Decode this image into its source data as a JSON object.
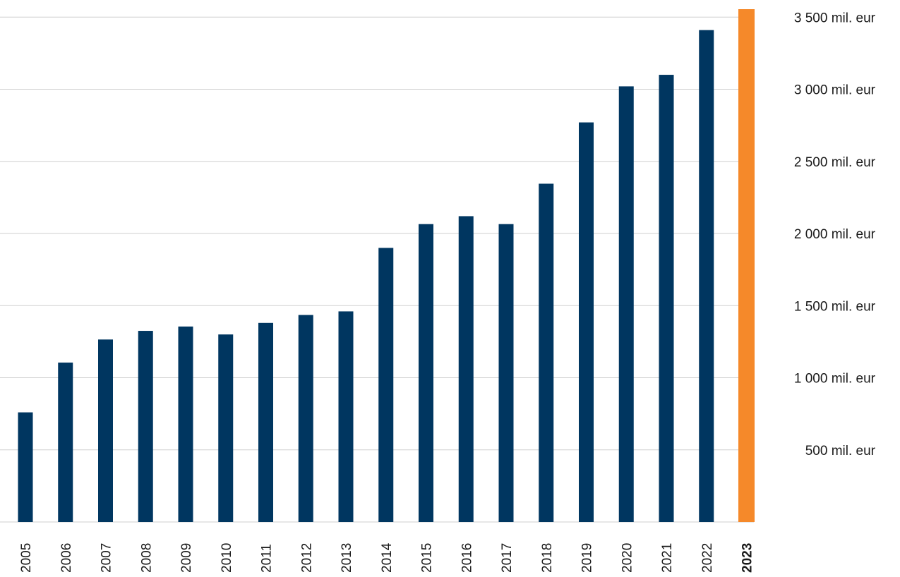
{
  "chart_data": {
    "type": "bar",
    "title": "",
    "xlabel": "",
    "ylabel": "",
    "categories": [
      "2005",
      "2006",
      "2007",
      "2008",
      "2009",
      "2010",
      "2011",
      "2012",
      "2013",
      "2014",
      "2015",
      "2016",
      "2017",
      "2018",
      "2019",
      "2020",
      "2021",
      "2022",
      "2023"
    ],
    "values": [
      760,
      1105,
      1265,
      1325,
      1355,
      1300,
      1380,
      1435,
      1460,
      1900,
      2065,
      2120,
      2065,
      2345,
      2770,
      3020,
      3100,
      3410,
      3540
    ],
    "highlight_category": "2023",
    "ylim": [
      0,
      3500
    ],
    "y_ticks": [
      {
        "value": 500,
        "label": "500 mil. eur"
      },
      {
        "value": 1000,
        "label": "1 000 mil. eur"
      },
      {
        "value": 1500,
        "label": "1 500 mil. eur"
      },
      {
        "value": 2000,
        "label": "2 000 mil. eur"
      },
      {
        "value": 2500,
        "label": "2 500 mil. eur"
      },
      {
        "value": 3000,
        "label": "3 000 mil. eur"
      },
      {
        "value": 3500,
        "label": "3 500 mil. eur"
      }
    ],
    "y_axis_position": "right",
    "grid": true,
    "legend": "none",
    "colors": {
      "bar": "#003660",
      "highlight": "#f5892a",
      "grid": "#cfcfcf",
      "text": "#1a1a1a"
    }
  }
}
